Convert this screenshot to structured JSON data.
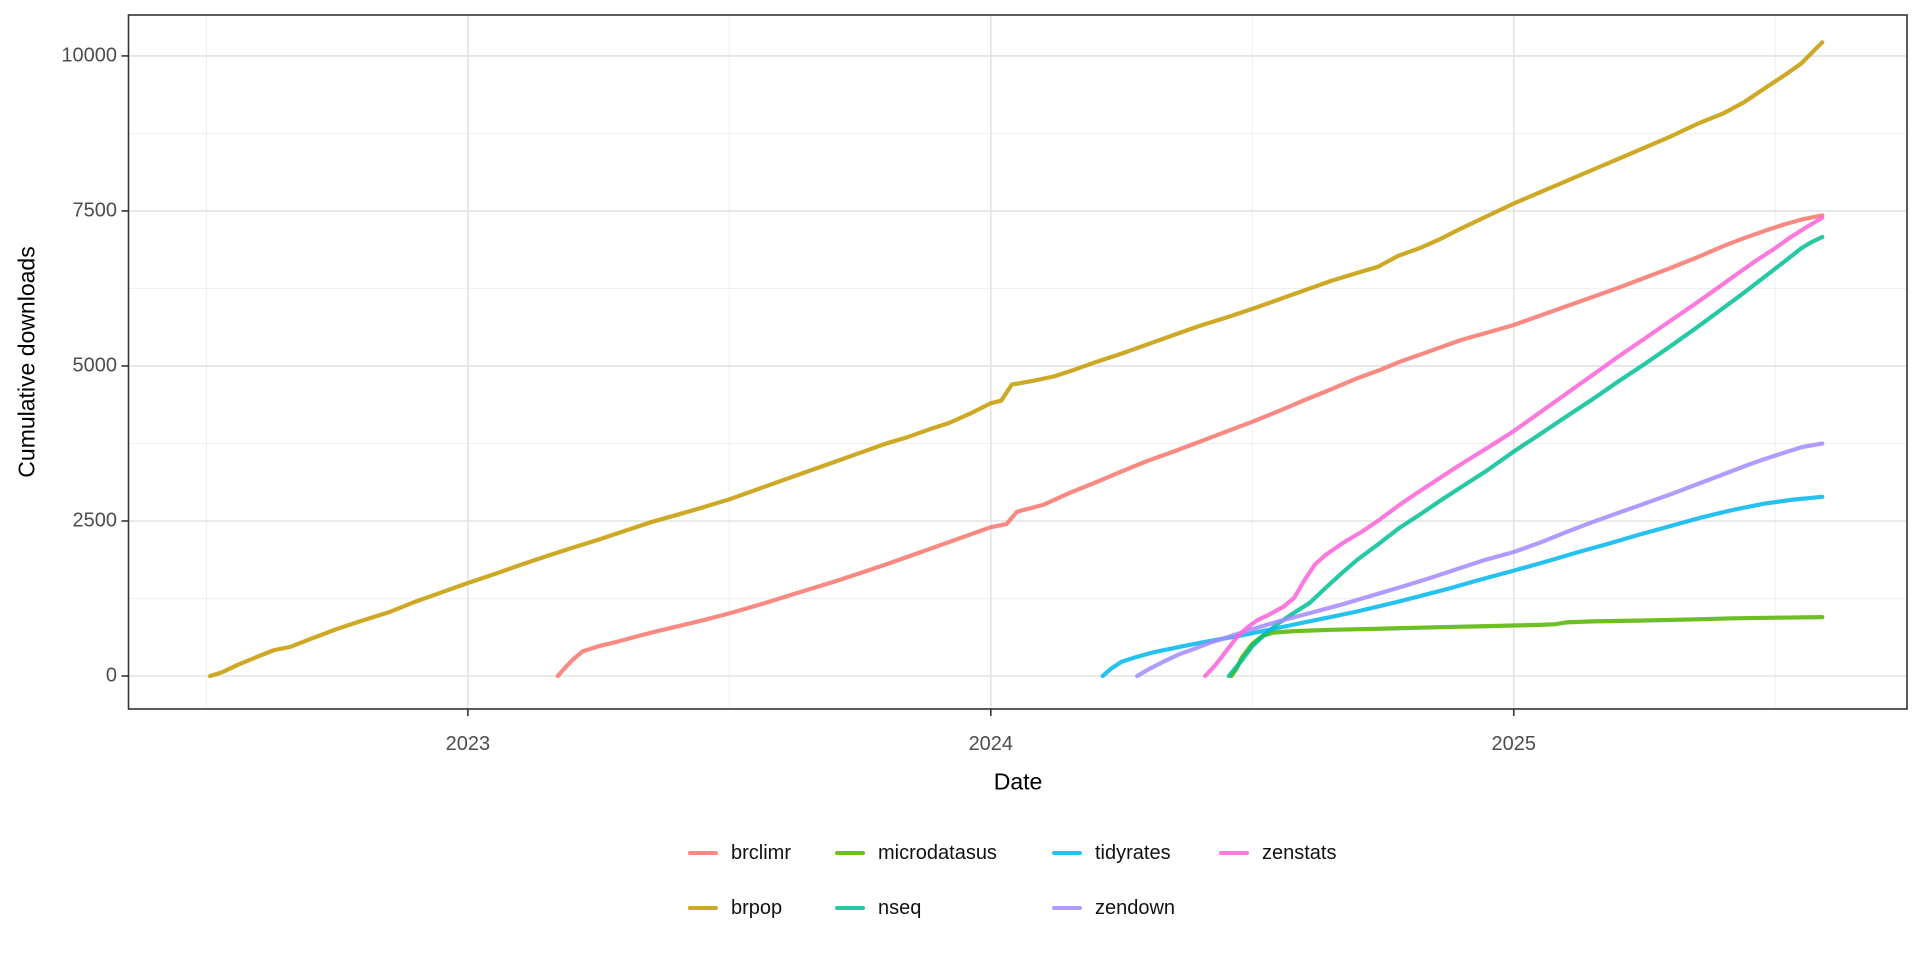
{
  "chart_data": {
    "type": "line",
    "title": "",
    "xlabel": "Date",
    "ylabel": "Cumulative downloads",
    "grid": true,
    "legend_position": "bottom",
    "line_alpha": 0.85,
    "xlim": [
      2022.351,
      2025.752
    ],
    "ylim": [
      -532,
      10660
    ],
    "x_ticks": [
      {
        "v": 2023,
        "label": "2023"
      },
      {
        "v": 2024,
        "label": "2024"
      },
      {
        "v": 2025,
        "label": "2025"
      }
    ],
    "x_minor": [
      2022.5,
      2023.5,
      2024.5,
      2025.5
    ],
    "y_ticks": [
      {
        "v": 0,
        "label": "0"
      },
      {
        "v": 2500,
        "label": "2500"
      },
      {
        "v": 5000,
        "label": "5000"
      },
      {
        "v": 7500,
        "label": "7500"
      },
      {
        "v": 10000,
        "label": "10000"
      }
    ],
    "y_minor": [
      1250,
      3750,
      6250,
      8750
    ],
    "series": [
      {
        "name": "brclimr",
        "color": "#F8766D",
        "points": [
          [
            2023.172,
            0
          ],
          [
            2023.18,
            80
          ],
          [
            2023.2,
            260
          ],
          [
            2023.22,
            400
          ],
          [
            2023.25,
            480
          ],
          [
            2023.28,
            540
          ],
          [
            2023.32,
            630
          ],
          [
            2023.36,
            720
          ],
          [
            2023.4,
            800
          ],
          [
            2023.45,
            900
          ],
          [
            2023.5,
            1010
          ],
          [
            2023.55,
            1130
          ],
          [
            2023.6,
            1260
          ],
          [
            2023.65,
            1390
          ],
          [
            2023.7,
            1520
          ],
          [
            2023.75,
            1660
          ],
          [
            2023.8,
            1800
          ],
          [
            2023.85,
            1950
          ],
          [
            2023.9,
            2100
          ],
          [
            2023.95,
            2250
          ],
          [
            2024.0,
            2400
          ],
          [
            2024.03,
            2450
          ],
          [
            2024.05,
            2650
          ],
          [
            2024.1,
            2760
          ],
          [
            2024.15,
            2950
          ],
          [
            2024.2,
            3120
          ],
          [
            2024.25,
            3300
          ],
          [
            2024.3,
            3470
          ],
          [
            2024.35,
            3620
          ],
          [
            2024.4,
            3780
          ],
          [
            2024.45,
            3940
          ],
          [
            2024.5,
            4100
          ],
          [
            2024.55,
            4270
          ],
          [
            2024.6,
            4450
          ],
          [
            2024.65,
            4620
          ],
          [
            2024.7,
            4800
          ],
          [
            2024.74,
            4920
          ],
          [
            2024.78,
            5060
          ],
          [
            2024.82,
            5180
          ],
          [
            2024.86,
            5300
          ],
          [
            2024.9,
            5420
          ],
          [
            2024.95,
            5540
          ],
          [
            2025.0,
            5660
          ],
          [
            2025.05,
            5810
          ],
          [
            2025.1,
            5960
          ],
          [
            2025.15,
            6110
          ],
          [
            2025.2,
            6260
          ],
          [
            2025.25,
            6420
          ],
          [
            2025.3,
            6580
          ],
          [
            2025.35,
            6750
          ],
          [
            2025.4,
            6930
          ],
          [
            2025.44,
            7060
          ],
          [
            2025.48,
            7180
          ],
          [
            2025.52,
            7290
          ],
          [
            2025.55,
            7360
          ],
          [
            2025.59,
            7430
          ]
        ]
      },
      {
        "name": "brpop",
        "color": "#C49A00",
        "points": [
          [
            2022.507,
            0
          ],
          [
            2022.53,
            60
          ],
          [
            2022.56,
            180
          ],
          [
            2022.6,
            320
          ],
          [
            2022.63,
            420
          ],
          [
            2022.66,
            470
          ],
          [
            2022.7,
            600
          ],
          [
            2022.75,
            760
          ],
          [
            2022.8,
            900
          ],
          [
            2022.85,
            1030
          ],
          [
            2022.9,
            1200
          ],
          [
            2022.95,
            1350
          ],
          [
            2023.0,
            1500
          ],
          [
            2023.05,
            1640
          ],
          [
            2023.1,
            1790
          ],
          [
            2023.15,
            1930
          ],
          [
            2023.2,
            2070
          ],
          [
            2023.25,
            2200
          ],
          [
            2023.3,
            2340
          ],
          [
            2023.35,
            2480
          ],
          [
            2023.4,
            2600
          ],
          [
            2023.45,
            2720
          ],
          [
            2023.5,
            2850
          ],
          [
            2023.55,
            3000
          ],
          [
            2023.6,
            3150
          ],
          [
            2023.65,
            3300
          ],
          [
            2023.7,
            3450
          ],
          [
            2023.75,
            3600
          ],
          [
            2023.8,
            3750
          ],
          [
            2023.84,
            3850
          ],
          [
            2023.88,
            3970
          ],
          [
            2023.92,
            4080
          ],
          [
            2023.96,
            4230
          ],
          [
            2024.0,
            4400
          ],
          [
            2024.02,
            4440
          ],
          [
            2024.04,
            4700
          ],
          [
            2024.08,
            4760
          ],
          [
            2024.12,
            4830
          ],
          [
            2024.16,
            4940
          ],
          [
            2024.2,
            5060
          ],
          [
            2024.25,
            5200
          ],
          [
            2024.3,
            5350
          ],
          [
            2024.35,
            5500
          ],
          [
            2024.4,
            5650
          ],
          [
            2024.45,
            5780
          ],
          [
            2024.5,
            5920
          ],
          [
            2024.55,
            6070
          ],
          [
            2024.6,
            6220
          ],
          [
            2024.65,
            6370
          ],
          [
            2024.7,
            6500
          ],
          [
            2024.74,
            6600
          ],
          [
            2024.78,
            6780
          ],
          [
            2024.82,
            6900
          ],
          [
            2024.86,
            7050
          ],
          [
            2024.9,
            7220
          ],
          [
            2024.95,
            7420
          ],
          [
            2025.0,
            7620
          ],
          [
            2025.05,
            7800
          ],
          [
            2025.1,
            7980
          ],
          [
            2025.15,
            8160
          ],
          [
            2025.2,
            8340
          ],
          [
            2025.25,
            8520
          ],
          [
            2025.3,
            8700
          ],
          [
            2025.35,
            8900
          ],
          [
            2025.4,
            9070
          ],
          [
            2025.44,
            9250
          ],
          [
            2025.48,
            9480
          ],
          [
            2025.52,
            9700
          ],
          [
            2025.55,
            9880
          ],
          [
            2025.57,
            10050
          ],
          [
            2025.59,
            10220
          ]
        ]
      },
      {
        "name": "microdatasus",
        "color": "#53B400",
        "points": [
          [
            2024.46,
            0
          ],
          [
            2024.47,
            120
          ],
          [
            2024.48,
            300
          ],
          [
            2024.5,
            520
          ],
          [
            2024.52,
            650
          ],
          [
            2024.54,
            700
          ],
          [
            2024.58,
            725
          ],
          [
            2024.65,
            745
          ],
          [
            2024.75,
            765
          ],
          [
            2024.85,
            785
          ],
          [
            2024.95,
            805
          ],
          [
            2025.0,
            815
          ],
          [
            2025.05,
            825
          ],
          [
            2025.08,
            835
          ],
          [
            2025.1,
            865
          ],
          [
            2025.15,
            880
          ],
          [
            2025.25,
            895
          ],
          [
            2025.35,
            915
          ],
          [
            2025.42,
            930
          ],
          [
            2025.5,
            940
          ],
          [
            2025.59,
            950
          ]
        ]
      },
      {
        "name": "nseq",
        "color": "#00C094",
        "points": [
          [
            2024.455,
            0
          ],
          [
            2024.48,
            250
          ],
          [
            2024.5,
            480
          ],
          [
            2024.52,
            640
          ],
          [
            2024.55,
            850
          ],
          [
            2024.58,
            1020
          ],
          [
            2024.61,
            1180
          ],
          [
            2024.64,
            1420
          ],
          [
            2024.67,
            1650
          ],
          [
            2024.7,
            1870
          ],
          [
            2024.74,
            2120
          ],
          [
            2024.78,
            2380
          ],
          [
            2024.82,
            2600
          ],
          [
            2024.86,
            2830
          ],
          [
            2024.9,
            3050
          ],
          [
            2024.95,
            3320
          ],
          [
            2025.0,
            3620
          ],
          [
            2025.05,
            3900
          ],
          [
            2025.1,
            4180
          ],
          [
            2025.15,
            4460
          ],
          [
            2025.2,
            4750
          ],
          [
            2025.25,
            5030
          ],
          [
            2025.3,
            5320
          ],
          [
            2025.35,
            5620
          ],
          [
            2025.4,
            5930
          ],
          [
            2025.44,
            6180
          ],
          [
            2025.48,
            6440
          ],
          [
            2025.52,
            6700
          ],
          [
            2025.55,
            6900
          ],
          [
            2025.57,
            7000
          ],
          [
            2025.59,
            7080
          ]
        ]
      },
      {
        "name": "tidyrates",
        "color": "#00B6EB",
        "points": [
          [
            2024.214,
            0
          ],
          [
            2024.23,
            120
          ],
          [
            2024.25,
            230
          ],
          [
            2024.28,
            310
          ],
          [
            2024.31,
            380
          ],
          [
            2024.35,
            450
          ],
          [
            2024.39,
            520
          ],
          [
            2024.43,
            580
          ],
          [
            2024.47,
            640
          ],
          [
            2024.5,
            690
          ],
          [
            2024.54,
            760
          ],
          [
            2024.58,
            830
          ],
          [
            2024.62,
            900
          ],
          [
            2024.66,
            970
          ],
          [
            2024.7,
            1040
          ],
          [
            2024.74,
            1120
          ],
          [
            2024.78,
            1200
          ],
          [
            2024.83,
            1310
          ],
          [
            2024.88,
            1420
          ],
          [
            2024.93,
            1540
          ],
          [
            2025.0,
            1700
          ],
          [
            2025.06,
            1840
          ],
          [
            2025.12,
            1990
          ],
          [
            2025.18,
            2130
          ],
          [
            2025.24,
            2280
          ],
          [
            2025.3,
            2420
          ],
          [
            2025.36,
            2560
          ],
          [
            2025.42,
            2680
          ],
          [
            2025.48,
            2780
          ],
          [
            2025.53,
            2840
          ],
          [
            2025.59,
            2890
          ]
        ]
      },
      {
        "name": "zendown",
        "color": "#A58AFF",
        "points": [
          [
            2024.28,
            0
          ],
          [
            2024.3,
            100
          ],
          [
            2024.33,
            230
          ],
          [
            2024.36,
            350
          ],
          [
            2024.39,
            440
          ],
          [
            2024.42,
            540
          ],
          [
            2024.45,
            620
          ],
          [
            2024.48,
            700
          ],
          [
            2024.51,
            780
          ],
          [
            2024.55,
            880
          ],
          [
            2024.59,
            970
          ],
          [
            2024.63,
            1060
          ],
          [
            2024.67,
            1150
          ],
          [
            2024.71,
            1250
          ],
          [
            2024.75,
            1350
          ],
          [
            2024.79,
            1450
          ],
          [
            2024.84,
            1580
          ],
          [
            2024.89,
            1720
          ],
          [
            2024.94,
            1860
          ],
          [
            2025.0,
            2000
          ],
          [
            2025.05,
            2150
          ],
          [
            2025.1,
            2320
          ],
          [
            2025.15,
            2480
          ],
          [
            2025.2,
            2630
          ],
          [
            2025.25,
            2780
          ],
          [
            2025.3,
            2930
          ],
          [
            2025.35,
            3090
          ],
          [
            2025.4,
            3250
          ],
          [
            2025.44,
            3380
          ],
          [
            2025.48,
            3500
          ],
          [
            2025.52,
            3610
          ],
          [
            2025.55,
            3690
          ],
          [
            2025.59,
            3750
          ]
        ]
      },
      {
        "name": "zenstats",
        "color": "#FB61D7",
        "points": [
          [
            2024.41,
            0
          ],
          [
            2024.43,
            180
          ],
          [
            2024.45,
            400
          ],
          [
            2024.47,
            620
          ],
          [
            2024.49,
            780
          ],
          [
            2024.51,
            900
          ],
          [
            2024.53,
            980
          ],
          [
            2024.56,
            1120
          ],
          [
            2024.58,
            1260
          ],
          [
            2024.6,
            1550
          ],
          [
            2024.62,
            1800
          ],
          [
            2024.64,
            1950
          ],
          [
            2024.66,
            2070
          ],
          [
            2024.68,
            2180
          ],
          [
            2024.71,
            2330
          ],
          [
            2024.74,
            2500
          ],
          [
            2024.78,
            2750
          ],
          [
            2024.82,
            2980
          ],
          [
            2024.86,
            3200
          ],
          [
            2024.9,
            3420
          ],
          [
            2024.95,
            3680
          ],
          [
            2025.0,
            3950
          ],
          [
            2025.05,
            4250
          ],
          [
            2025.1,
            4550
          ],
          [
            2025.15,
            4850
          ],
          [
            2025.2,
            5150
          ],
          [
            2025.25,
            5440
          ],
          [
            2025.3,
            5730
          ],
          [
            2025.34,
            5960
          ],
          [
            2025.38,
            6200
          ],
          [
            2025.42,
            6440
          ],
          [
            2025.46,
            6680
          ],
          [
            2025.5,
            6900
          ],
          [
            2025.53,
            7080
          ],
          [
            2025.56,
            7240
          ],
          [
            2025.59,
            7390
          ]
        ]
      }
    ],
    "legend_rows": [
      [
        {
          "label": "brclimr",
          "color": "#F8766D"
        },
        {
          "label": "microdatasus",
          "color": "#53B400"
        },
        {
          "label": "tidyrates",
          "color": "#00B6EB"
        },
        {
          "label": "zenstats",
          "color": "#FB61D7"
        }
      ],
      [
        {
          "label": "brpop",
          "color": "#C49A00"
        },
        {
          "label": "nseq",
          "color": "#00C094"
        },
        {
          "label": "zendown",
          "color": "#A58AFF"
        }
      ]
    ]
  },
  "style": {
    "panel_border_color": "#343434",
    "grid_major_color": "#E3E3E3",
    "grid_minor_color": "#EFEFEF",
    "tick_text_color": "#4d4d4d"
  }
}
